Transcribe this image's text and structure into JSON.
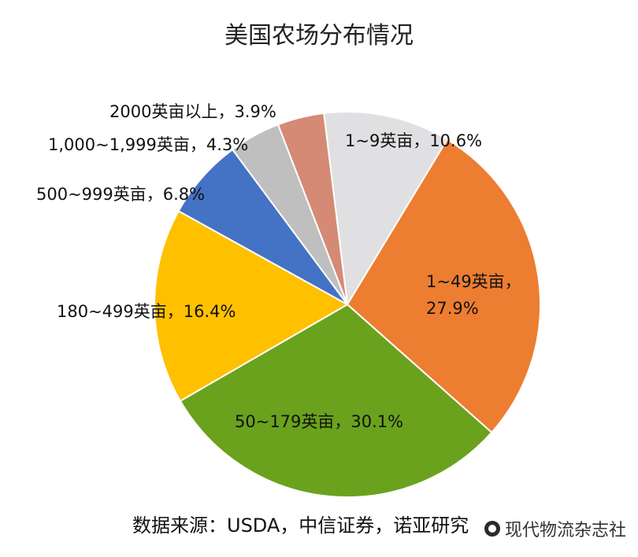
{
  "chart_data": {
    "type": "pie",
    "title": "美国农场分布情况",
    "source": "数据来源：USDA，中信证券，诺亚研究",
    "slices": [
      {
        "name": "1~9英亩",
        "value": 10.6,
        "label": "1~9英亩，10.6%",
        "color": "#E0E0E2"
      },
      {
        "name": "1~49英亩",
        "value": 27.9,
        "label_lines": [
          "1~49英亩，",
          "27.9%"
        ],
        "color": "#ED7D31"
      },
      {
        "name": "50~179英亩",
        "value": 30.1,
        "label": "50~179英亩，30.1%",
        "color": "#6AA21D"
      },
      {
        "name": "180~499英亩",
        "value": 16.4,
        "label": "180~499英亩，16.4%",
        "color": "#FFC000"
      },
      {
        "name": "500~999英亩",
        "value": 6.8,
        "label": "500~999英亩，6.8%",
        "color": "#4472C4"
      },
      {
        "name": "1,000~1,999英亩",
        "value": 4.3,
        "label": "1,000~1,999英亩，4.3%",
        "color": "#BFBFBF"
      },
      {
        "name": "2000英亩以上",
        "value": 3.9,
        "label": "2000英亩以上，3.9%",
        "color": "#D48A75"
      }
    ]
  },
  "watermark": {
    "text": "现代物流杂志社",
    "icon": "wechat-logo-icon"
  }
}
